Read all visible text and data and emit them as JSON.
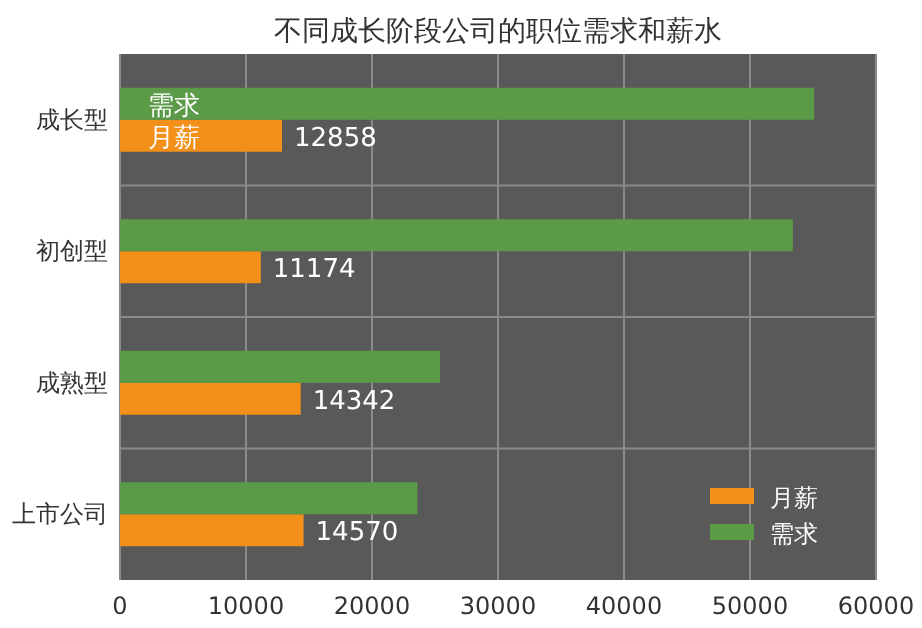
{
  "chart_data": {
    "type": "bar",
    "orientation": "horizontal",
    "title": "不同成长阶段公司的职位需求和薪水",
    "categories": [
      "成长型",
      "初创型",
      "成熟型",
      "上市公司"
    ],
    "series": [
      {
        "name": "月薪",
        "color": "#f39019",
        "values": [
          12858,
          11174,
          14342,
          14570
        ],
        "value_labels": [
          "12858",
          "11174",
          "14342",
          "14570"
        ]
      },
      {
        "name": "需求",
        "color": "#5b9b48",
        "values": [
          55100,
          53400,
          25400,
          23600
        ]
      }
    ],
    "annotations": [
      "需求",
      "月薪"
    ],
    "xlim": [
      0,
      60000
    ],
    "xticks": [
      0,
      10000,
      20000,
      30000,
      40000,
      50000,
      60000
    ],
    "grid": true,
    "legend": "bottom right"
  }
}
